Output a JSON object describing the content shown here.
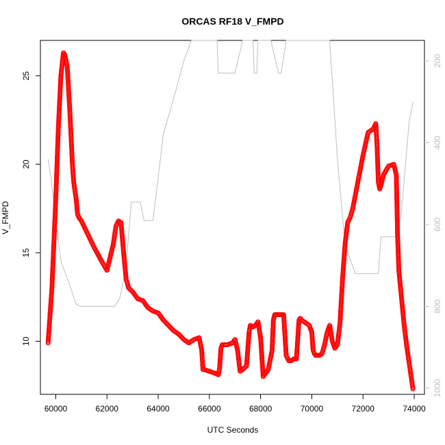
{
  "chart_data": {
    "type": "scatter",
    "title": "ORCAS RF18 V_FMPD",
    "xlabel": "UTC Seconds",
    "ylabel": "V_FMPD",
    "xlim": [
      59400,
      74400
    ],
    "ylim": [
      7.0,
      27.0
    ],
    "x_ticks": [
      "60000",
      "62000",
      "64000",
      "66000",
      "68000",
      "70000",
      "72000",
      "74000"
    ],
    "y_ticks": [
      "10",
      "15",
      "20",
      "25"
    ],
    "right_axis": {
      "ticks": [
        "200",
        "400",
        "600",
        "800",
        "1000"
      ],
      "color": "#bebebe",
      "reversed": true,
      "ylim": [
        1015,
        150
      ]
    },
    "series": [
      {
        "color": "#ff0000",
        "marker": "open-circle",
        "x": [
          59700,
          59850,
          60000,
          60100,
          60200,
          60300,
          60350,
          60450,
          60550,
          60600,
          60650,
          60700,
          60800,
          60850,
          60900,
          61000,
          61200,
          61500,
          61800,
          62000,
          62250,
          62350,
          62450,
          62550,
          62650,
          62750,
          62850,
          63000,
          63200,
          63400,
          63600,
          63800,
          64000,
          64200,
          64400,
          64600,
          64800,
          65000,
          65200,
          65400,
          65600,
          65700,
          65750,
          65800,
          66000,
          66200,
          66350,
          66400,
          66450,
          66500,
          66700,
          66900,
          67000,
          67100,
          67200,
          67300,
          67450,
          67550,
          67600,
          67700,
          67800,
          67900,
          68000,
          68100,
          68200,
          68300,
          68450,
          68500,
          68550,
          68600,
          68700,
          68800,
          68900,
          69000,
          69100,
          69200,
          69300,
          69400,
          69500,
          69550,
          69600,
          69700,
          69800,
          69900,
          70000,
          70050,
          70100,
          70150,
          70200,
          70300,
          70400,
          70500,
          70600,
          70700,
          70800,
          70900,
          71000,
          71100,
          71200,
          71300,
          71400,
          71500,
          71600,
          71800,
          72000,
          72200,
          72400,
          72500,
          72550,
          72600,
          72650,
          72700,
          72800,
          73000,
          73200,
          73300,
          73350,
          73400,
          73500,
          73600,
          73700,
          73800,
          73900,
          73950
        ],
        "y": [
          9.9,
          13.0,
          18.0,
          22.0,
          25.0,
          26.3,
          26.2,
          25.5,
          23.0,
          21.5,
          20.0,
          19.0,
          18.0,
          17.2,
          17.0,
          16.8,
          16.2,
          15.3,
          14.5,
          14.0,
          15.5,
          16.5,
          16.8,
          16.7,
          15.0,
          13.5,
          13.0,
          12.8,
          12.4,
          12.3,
          11.9,
          11.7,
          11.6,
          11.2,
          10.9,
          10.6,
          10.4,
          10.1,
          9.9,
          10.1,
          10.2,
          9.5,
          8.4,
          8.4,
          8.3,
          8.2,
          8.1,
          8.5,
          9.6,
          9.8,
          9.8,
          9.9,
          10.1,
          9.5,
          8.3,
          8.4,
          8.6,
          10.5,
          10.9,
          10.8,
          10.9,
          11.1,
          10.2,
          8.0,
          8.2,
          8.4,
          9.5,
          11.2,
          11.5,
          11.5,
          11.5,
          11.5,
          11.5,
          9.2,
          8.9,
          8.9,
          9.0,
          9.0,
          11.2,
          11.3,
          11.2,
          11.1,
          11.0,
          10.9,
          10.5,
          9.5,
          9.3,
          9.2,
          9.2,
          9.2,
          9.3,
          9.8,
          10.5,
          10.9,
          10.0,
          9.6,
          9.8,
          11.0,
          13.5,
          15.5,
          16.7,
          17.0,
          17.5,
          19.0,
          20.5,
          21.8,
          22.0,
          22.3,
          21.0,
          19.0,
          18.6,
          18.8,
          19.4,
          19.9,
          20.0,
          19.4,
          16.0,
          14.0,
          12.5,
          11.0,
          9.8,
          8.8,
          7.8,
          7.3
        ]
      },
      {
        "color": "#bebebe",
        "marker": "line",
        "axis": "right",
        "x": [
          59700,
          59800,
          60000,
          60200,
          60500,
          60800,
          61000,
          61500,
          62000,
          62300,
          62500,
          62700,
          62800,
          62950,
          63300,
          63450,
          63800,
          64200,
          64700,
          65000,
          65300,
          65400,
          66300,
          66350,
          66400,
          66600,
          67000,
          67300,
          67700,
          67750,
          67850,
          67900,
          68400,
          68700,
          68800,
          69000,
          69700,
          69800,
          70000,
          70600,
          70700,
          71000,
          71300,
          71700,
          72000,
          72300,
          72600,
          72700,
          73000,
          73300,
          73500,
          73800,
          73950
        ],
        "y": [
          440,
          480,
          590,
          690,
          740,
          795,
          800,
          800,
          800,
          800,
          780,
          720,
          660,
          545,
          545,
          590,
          590,
          380,
          270,
          200,
          150,
          150,
          150,
          230,
          230,
          230,
          230,
          150,
          150,
          230,
          230,
          150,
          150,
          230,
          230,
          150,
          150,
          150,
          150,
          150,
          150,
          440,
          650,
          720,
          720,
          720,
          720,
          630,
          630,
          630,
          570,
          350,
          300
        ]
      }
    ]
  }
}
